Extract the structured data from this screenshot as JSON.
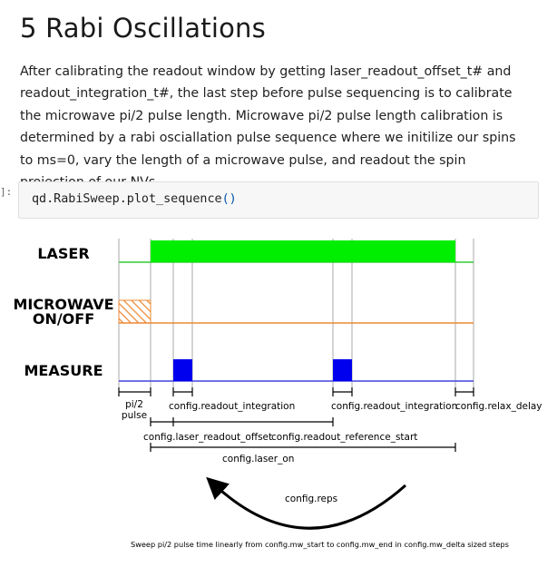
{
  "heading": {
    "title": "5 Rabi Oscillations"
  },
  "paragraph": "After calibrating the readout window by getting laser_readout_offset_t# and readout_integration_t#, the last step before pulse sequencing is to calibrate the microwave pi/2 pulse length. Microwave pi/2 pulse length calibration is determined by a rabi osciallation pulse sequence where we initilize our spins to ms=0, vary the length of a microwave pulse, and readout the spin projection of our NVs.",
  "code_cell": {
    "prompt": "]:",
    "code_main": "qd.RabiSweep.plot_sequence",
    "code_parens": "()"
  },
  "diagram": {
    "channels": {
      "laser": "LASER",
      "microwave_line1": "MICROWAVE",
      "microwave_line2": "ON/OFF",
      "measure": "MEASURE"
    },
    "labels": {
      "pi2_line1": "pi/2",
      "pi2_line2": "pulse",
      "readout_integration_1": "config.readout_integration",
      "readout_integration_2": "config.readout_integration",
      "relax_delay": "config.relax_delay",
      "laser_readout_offset": "config.laser_readout_offset",
      "readout_reference_start": "config.readout_reference_start",
      "laser_on": "config.laser_on",
      "reps": "config.reps",
      "caption": "Sweep pi/2 pulse time linearly from config.mw_start to config.mw_end in config.mw_delta sized steps"
    },
    "colors": {
      "laser": "#00ee00",
      "laser_line": "#33cc33",
      "microwave": "#ee8833",
      "measure": "#0000ee",
      "measure_line": "#4444dd",
      "marker_line": "#aaaaaa",
      "black": "#000000"
    }
  }
}
